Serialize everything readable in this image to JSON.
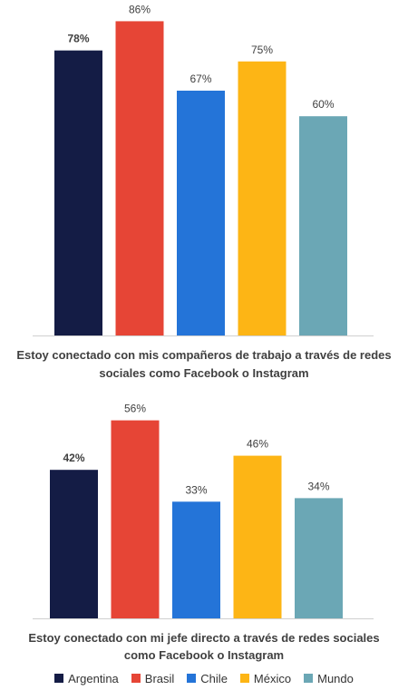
{
  "chart_data": [
    {
      "type": "bar",
      "title": "Estoy conectado con mis compañeros de trabajo a través de redes sociales como Facebook o Instagram",
      "title_lines": [
        "Estoy conectado con mis compañeros de trabajo a través de redes",
        "sociales como Facebook o Instagram"
      ],
      "categories": [
        "Argentina",
        "Brasil",
        "Chile",
        "México",
        "Mundo"
      ],
      "values": [
        78,
        86,
        67,
        75,
        60
      ],
      "data_labels": [
        "78%",
        "86%",
        "67%",
        "75%",
        "60%"
      ],
      "bold_labels": [
        true,
        false,
        false,
        false,
        false
      ],
      "ylim": [
        0,
        100
      ],
      "grid": false
    },
    {
      "type": "bar",
      "title": "Estoy conectado con mi jefe directo a través de redes sociales como Facebook o Instagram",
      "title_lines": [
        "Estoy conectado con mi jefe directo a través de redes sociales",
        "como Facebook o Instagram"
      ],
      "categories": [
        "Argentina",
        "Brasil",
        "Chile",
        "México",
        "Mundo"
      ],
      "values": [
        42,
        56,
        33,
        46,
        34
      ],
      "data_labels": [
        "42%",
        "56%",
        "33%",
        "46%",
        "34%"
      ],
      "bold_labels": [
        true,
        false,
        false,
        false,
        false
      ],
      "ylim": [
        0,
        100
      ],
      "grid": false
    }
  ],
  "legend": {
    "placement": "bottom",
    "items": [
      {
        "label": "Argentina",
        "color": "#141c45"
      },
      {
        "label": "Brasil",
        "color": "#e64536"
      },
      {
        "label": "Chile",
        "color": "#2474d8"
      },
      {
        "label": "México",
        "color": "#fdb515"
      },
      {
        "label": "Mundo",
        "color": "#6ba7b5"
      }
    ]
  }
}
